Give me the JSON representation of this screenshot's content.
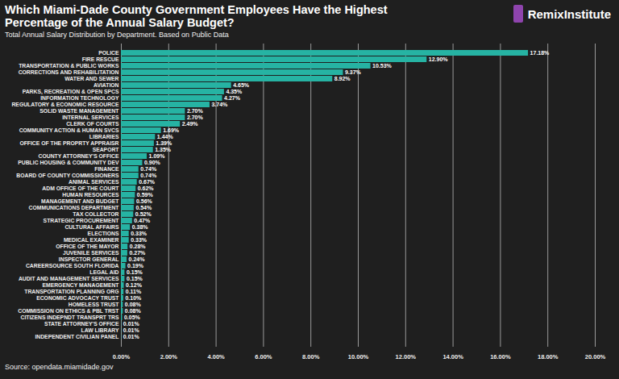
{
  "chart_data": {
    "type": "bar",
    "title": "Which Miami-Dade County Government Employees Have the Highest Percentage of the Annual Salary Budget?",
    "subtitle": "Total Annual Salary Distribution by Department. Based on Public Data",
    "source": "Source: opendata.miamidade.gov",
    "brand": "RemixInstitute",
    "orientation": "horizontal",
    "color": "#26b3a3",
    "grid": true,
    "data_labels": true,
    "categories": [
      "POLICE",
      "FIRE RESCUE",
      "TRANSPORTATION & PUBLIC WORKS",
      "CORRECTIONS AND REHABILITATION",
      "WATER AND SEWER",
      "AVIATION",
      "PARKS, RECREATION & OPEN SPCS",
      "INFORMATION TECHNOLOGY",
      "REGULATORY & ECONOMIC RESOURCE",
      "SOLID WASTE MANAGEMENT",
      "INTERNAL SERVICES",
      "CLERK OF COURTS",
      "COMMUNITY ACTION & HUMAN SVCS",
      "LIBRARIES",
      "OFFICE OF THE PROPRTY APPRAISR",
      "SEAPORT",
      "COUNTY ATTORNEY'S OFFICE",
      "PUBLIC HOUSING & COMMUNITY DEV",
      "FINANCE",
      "BOARD OF COUNTY COMMISSIONERS",
      "ANIMAL SERVICES",
      "ADM OFFICE OF THE COURT",
      "HUMAN RESOURCES",
      "MANAGEMENT AND BUDGET",
      "COMMUNICATIONS DEPARTMENT",
      "TAX COLLECTOR",
      "STRATEGIC PROCUREMENT",
      "CULTURAL AFFAIRS",
      "ELECTIONS",
      "MEDICAL EXAMINER",
      "OFFICE OF THE MAYOR",
      "JUVENILE SERVICES",
      "INSPECTOR GENERAL",
      "CAREERSOURCE SOUTH FLORIDA",
      "LEGAL AID",
      "AUDIT AND MANAGEMENT SERVICES",
      "EMERGENCY MANAGEMENT",
      "TRANSPORTATION PLANNING ORG",
      "ECONOMIC ADVOCACY TRUST",
      "HOMELESS TRUST",
      "COMMISSION ON ETHICS & PBL TRST",
      "CITIZENS INDEPNDT TRANSPRT TRS",
      "STATE ATTORNEY'S OFFICE",
      "LAW LIBRARY",
      "INDEPENDENT CIVILIAN PANEL"
    ],
    "values": [
      17.18,
      12.9,
      10.53,
      9.37,
      8.92,
      4.65,
      4.35,
      4.27,
      3.74,
      2.7,
      2.7,
      2.49,
      1.69,
      1.44,
      1.39,
      1.35,
      1.09,
      0.9,
      0.74,
      0.74,
      0.67,
      0.62,
      0.59,
      0.56,
      0.54,
      0.52,
      0.47,
      0.38,
      0.33,
      0.33,
      0.28,
      0.27,
      0.24,
      0.19,
      0.15,
      0.15,
      0.12,
      0.11,
      0.1,
      0.08,
      0.08,
      0.05,
      0.01,
      0.01,
      0.01
    ],
    "value_labels": [
      "17.18%",
      "12.90%",
      "10.53%",
      "9.37%",
      "8.92%",
      "4.65%",
      "4.35%",
      "4.27%",
      "3.74%",
      "2.70%",
      "2.70%",
      "2.49%",
      "1.69%",
      "1.44%",
      "1.39%",
      "1.35%",
      "1.09%",
      "0.90%",
      "0.74%",
      "0.74%",
      "0.67%",
      "0.62%",
      "0.59%",
      "0.56%",
      "0.54%",
      "0.52%",
      "0.47%",
      "0.38%",
      "0.33%",
      "0.33%",
      "0.28%",
      "0.27%",
      "0.24%",
      "0.19%",
      "0.15%",
      "0.15%",
      "0.12%",
      "0.11%",
      "0.10%",
      "0.08%",
      "0.08%",
      "0.05%",
      "0.01%",
      "0.01%",
      "0.01%"
    ],
    "xlim": [
      0,
      20
    ],
    "xticks": [
      {
        "value": 0,
        "label": "0.00%"
      },
      {
        "value": 2,
        "label": "2.00%"
      },
      {
        "value": 4,
        "label": "4.00%"
      },
      {
        "value": 6,
        "label": "6.00%"
      },
      {
        "value": 8,
        "label": "8.00%"
      },
      {
        "value": 10,
        "label": "10.00%"
      },
      {
        "value": 12,
        "label": "12.00%"
      },
      {
        "value": 14,
        "label": "14.00%"
      },
      {
        "value": 16,
        "label": "16.00%"
      },
      {
        "value": 18,
        "label": "18.00%"
      },
      {
        "value": 20,
        "label": "20.00%"
      }
    ]
  }
}
